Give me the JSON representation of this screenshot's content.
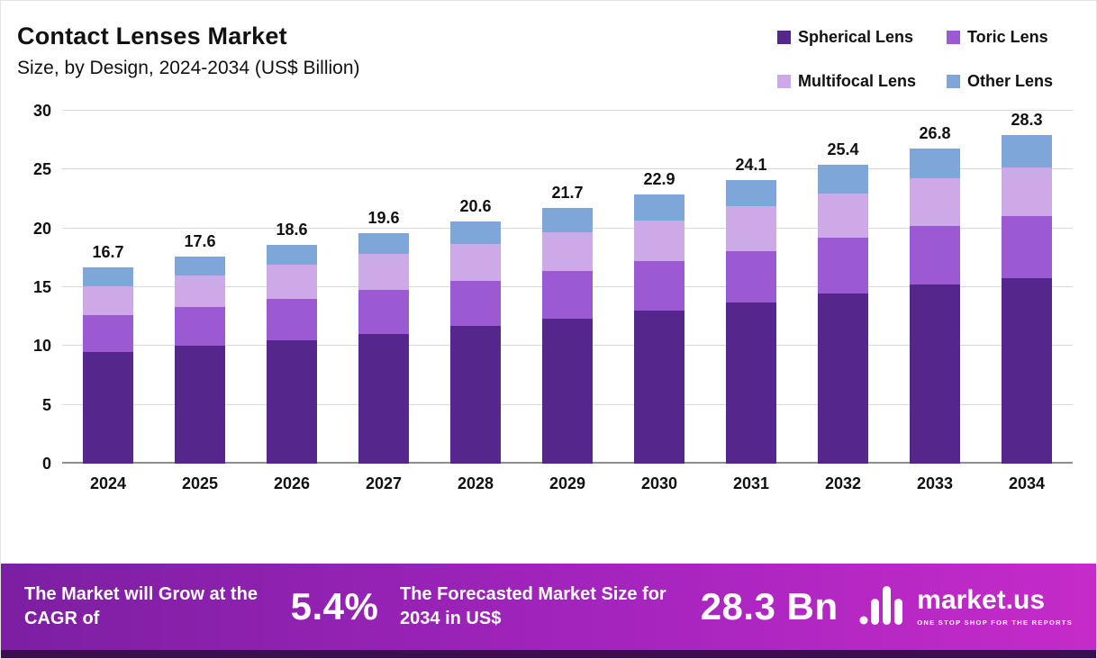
{
  "header": {
    "title": "Contact Lenses Market",
    "subtitle": "Size, by Design, 2024-2034 (US$ Billion)"
  },
  "legend": [
    {
      "label": "Spherical Lens",
      "color": "#55268c"
    },
    {
      "label": "Toric Lens",
      "color": "#9b59d2"
    },
    {
      "label": "Multifocal Lens",
      "color": "#cda9e8"
    },
    {
      "label": "Other Lens",
      "color": "#7fa6d9"
    }
  ],
  "chart_data": {
    "type": "bar",
    "stacked": true,
    "title": "Contact Lenses Market Size, by Design, 2024-2034 (US$ Billion)",
    "categories": [
      "2024",
      "2025",
      "2026",
      "2027",
      "2028",
      "2029",
      "2030",
      "2031",
      "2032",
      "2033",
      "2034"
    ],
    "series": [
      {
        "name": "Spherical Lens",
        "values": [
          9.5,
          10.0,
          10.5,
          11.0,
          11.7,
          12.3,
          13.0,
          13.7,
          14.5,
          15.2,
          16.0
        ]
      },
      {
        "name": "Toric Lens",
        "values": [
          3.1,
          3.3,
          3.5,
          3.8,
          3.8,
          4.1,
          4.2,
          4.4,
          4.7,
          5.0,
          5.3
        ]
      },
      {
        "name": "Multifocal Lens",
        "values": [
          2.5,
          2.7,
          2.9,
          3.0,
          3.2,
          3.3,
          3.5,
          3.8,
          3.8,
          4.1,
          4.2
        ]
      },
      {
        "name": "Other Lens",
        "values": [
          1.6,
          1.6,
          1.7,
          1.8,
          1.9,
          2.0,
          2.2,
          2.2,
          2.4,
          2.5,
          2.8
        ]
      }
    ],
    "totals": [
      16.7,
      17.6,
      18.6,
      19.6,
      20.6,
      21.7,
      22.9,
      24.1,
      25.4,
      26.8,
      28.3
    ],
    "total_labels": [
      "16.7",
      "17.6",
      "18.6",
      "19.6",
      "20.6",
      "21.7",
      "22.9",
      "24.1",
      "25.4",
      "26.8",
      "28.3"
    ],
    "xlabel": "",
    "ylabel": "",
    "ylim": [
      0,
      30
    ],
    "yticks": [
      0,
      5,
      10,
      15,
      20,
      25,
      30
    ],
    "grid": true,
    "legend_position": "top-right"
  },
  "footer": {
    "cagr_label": "The Market will Grow at the CAGR of",
    "cagr_value": "5.4%",
    "forecast_label": "The Forecasted Market Size for 2034 in US$",
    "forecast_value": "28.3 Bn",
    "brand": "market.us",
    "brand_tagline": "ONE STOP SHOP FOR THE REPORTS"
  }
}
